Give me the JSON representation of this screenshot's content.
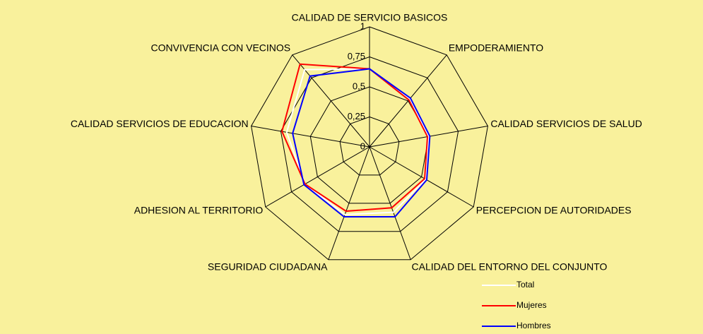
{
  "chart_data": {
    "type": "radar",
    "categories": [
      "CALIDAD DE SERVICIO BASICOS",
      "EMPODERAMIENTO",
      "CALIDAD SERVICIOS DE SALUD",
      "PERCEPCION DE AUTORIDADES",
      "CALIDAD DEL ENTORNO DEL CONJUNTO",
      "SEGURIDAD CIUDADANA",
      "ADHESION AL TERRITORIO",
      "CALIDAD SERVICIOS DE EDUCACION",
      "CONVIVENCIA CON VECINOS"
    ],
    "series": [
      {
        "name": "Total",
        "color": "#ffffff",
        "values": [
          0.65,
          0.52,
          0.5,
          0.54,
          0.58,
          0.6,
          0.62,
          0.7,
          0.84
        ]
      },
      {
        "name": "Mujeres",
        "color": "#ff0000",
        "values": [
          0.65,
          0.51,
          0.49,
          0.53,
          0.54,
          0.57,
          0.62,
          0.74,
          0.9
        ]
      },
      {
        "name": "Hombres",
        "color": "#0000ff",
        "values": [
          0.65,
          0.53,
          0.51,
          0.55,
          0.62,
          0.62,
          0.63,
          0.65,
          0.77
        ]
      }
    ],
    "ylim": [
      0,
      1
    ],
    "yticks": [
      0,
      {
        "value": 0.25,
        "label": "0,25"
      },
      {
        "value": 0.5,
        "label": "0,5"
      },
      {
        "value": 0.75,
        "label": "0,75"
      },
      1
    ],
    "grid": true,
    "legend": "bottom-right"
  }
}
